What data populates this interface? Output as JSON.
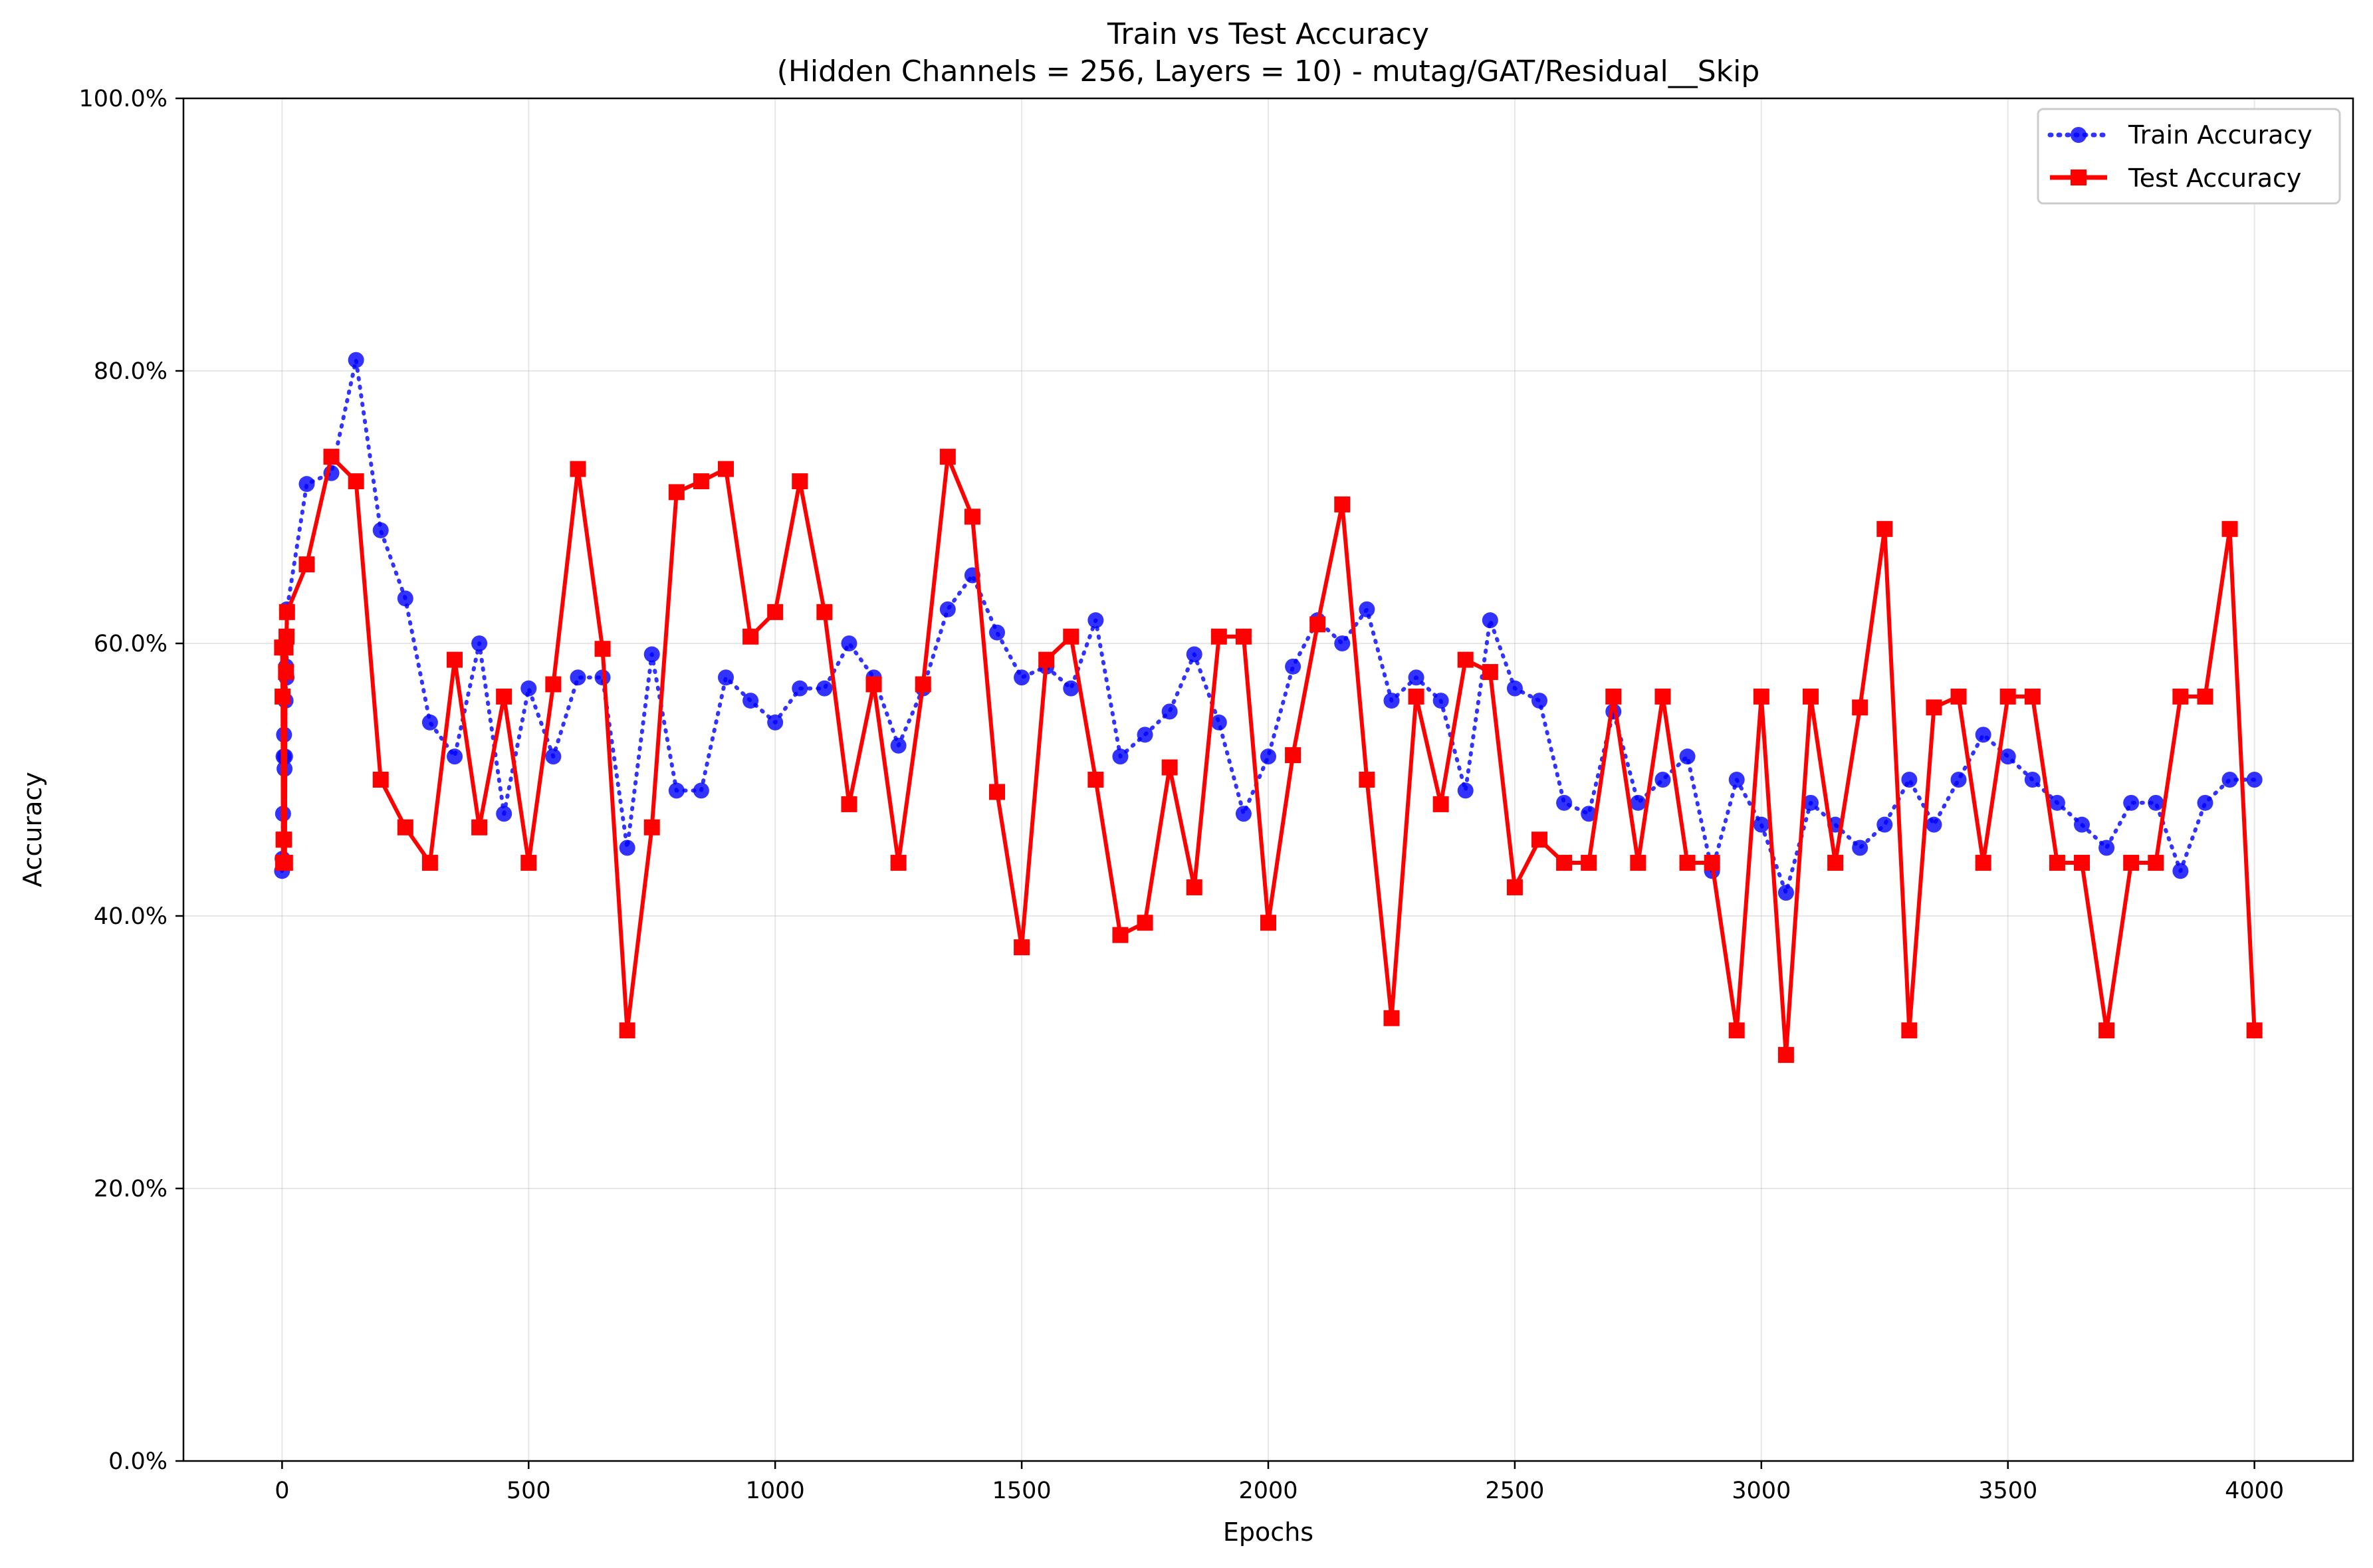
{
  "chart_data": {
    "type": "line",
    "title": "Train vs Test Accuracy",
    "subtitle": "(Hidden Channels = 256, Layers = 10) - mutag/GAT/Residual__Skip",
    "xlabel": "Epochs",
    "ylabel": "Accuracy",
    "xlim": [
      -200,
      4200
    ],
    "ylim": [
      0,
      1
    ],
    "x_ticks": [
      0,
      500,
      1000,
      1500,
      2000,
      2500,
      3000,
      3500,
      4000
    ],
    "x_tick_labels": [
      "0",
      "500",
      "1000",
      "1500",
      "2000",
      "2500",
      "3000",
      "3500",
      "4000"
    ],
    "y_ticks": [
      0,
      0.2,
      0.4,
      0.6,
      0.8,
      1.0
    ],
    "y_tick_labels": [
      "0.0%",
      "20.0%",
      "40.0%",
      "60.0%",
      "80.0%",
      "100.0%"
    ],
    "grid": true,
    "legend_position": "top-right",
    "x": [
      0,
      1,
      2,
      3,
      4,
      5,
      6,
      7,
      8,
      9,
      10,
      50,
      100,
      150,
      200,
      250,
      300,
      350,
      400,
      450,
      500,
      550,
      600,
      650,
      700,
      750,
      800,
      850,
      900,
      950,
      1000,
      1050,
      1100,
      1150,
      1200,
      1250,
      1300,
      1350,
      1400,
      1450,
      1500,
      1550,
      1600,
      1650,
      1700,
      1750,
      1800,
      1850,
      1900,
      1950,
      2000,
      2050,
      2100,
      2150,
      2200,
      2250,
      2300,
      2350,
      2400,
      2450,
      2500,
      2550,
      2600,
      2650,
      2700,
      2750,
      2800,
      2850,
      2900,
      2950,
      3000,
      3050,
      3100,
      3150,
      3200,
      3250,
      3300,
      3350,
      3400,
      3450,
      3500,
      3550,
      3600,
      3650,
      3700,
      3750,
      3800,
      3850,
      3900,
      3950,
      4000
    ],
    "series": [
      {
        "name": "Train Accuracy",
        "color": "#0000ff",
        "linestyle": "dotted",
        "marker": "circle",
        "values": [
          0.433,
          0.442,
          0.475,
          0.517,
          0.533,
          0.508,
          0.517,
          0.558,
          0.583,
          0.575,
          0.625,
          0.717,
          0.725,
          0.808,
          0.683,
          0.633,
          0.542,
          0.517,
          0.6,
          0.475,
          0.567,
          0.517,
          0.575,
          0.575,
          0.45,
          0.592,
          0.492,
          0.492,
          0.575,
          0.558,
          0.542,
          0.567,
          0.567,
          0.6,
          0.575,
          0.525,
          0.567,
          0.625,
          0.65,
          0.608,
          0.575,
          0.583,
          0.567,
          0.617,
          0.517,
          0.533,
          0.55,
          0.592,
          0.542,
          0.475,
          0.517,
          0.583,
          0.617,
          0.6,
          0.625,
          0.558,
          0.575,
          0.558,
          0.492,
          0.617,
          0.567,
          0.558,
          0.483,
          0.475,
          0.55,
          0.483,
          0.5,
          0.517,
          0.433,
          0.5,
          0.467,
          0.417,
          0.483,
          0.467,
          0.45,
          0.467,
          0.5,
          0.467,
          0.5,
          0.533,
          0.517,
          0.5,
          0.483,
          0.467,
          0.45,
          0.483,
          0.483,
          0.433,
          0.483,
          0.5,
          0.5
        ]
      },
      {
        "name": "Test Accuracy",
        "color": "#ff0000",
        "linestyle": "solid",
        "marker": "square",
        "values": [
          0.597,
          0.561,
          0.439,
          0.456,
          0.456,
          0.439,
          0.439,
          0.597,
          0.579,
          0.605,
          0.623,
          0.658,
          0.737,
          0.719,
          0.5,
          0.465,
          0.439,
          0.588,
          0.465,
          0.561,
          0.439,
          0.57,
          0.728,
          0.596,
          0.316,
          0.465,
          0.711,
          0.719,
          0.728,
          0.605,
          0.623,
          0.719,
          0.623,
          0.482,
          0.57,
          0.439,
          0.57,
          0.737,
          0.693,
          0.491,
          0.377,
          0.588,
          0.605,
          0.5,
          0.386,
          0.395,
          0.509,
          0.421,
          0.605,
          0.605,
          0.395,
          0.518,
          0.614,
          0.702,
          0.5,
          0.325,
          0.561,
          0.482,
          0.588,
          0.579,
          0.421,
          0.456,
          0.439,
          0.439,
          0.561,
          0.439,
          0.561,
          0.439,
          0.439,
          0.316,
          0.561,
          0.298,
          0.561,
          0.439,
          0.553,
          0.684,
          0.316,
          0.553,
          0.561,
          0.439,
          0.561,
          0.561,
          0.439,
          0.439,
          0.316,
          0.439,
          0.439,
          0.561,
          0.561,
          0.684,
          0.316
        ]
      }
    ]
  }
}
